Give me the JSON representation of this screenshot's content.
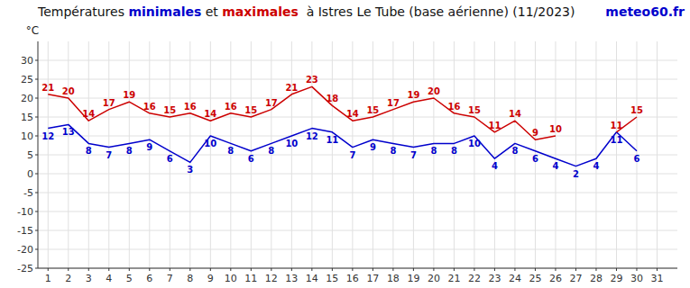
{
  "chart_data": {
    "type": "line",
    "title": "Températures minimales et maximales  à Istres Le Tube (base aérienne) (11/2023)",
    "ylabel": "°C",
    "annotations": [
      {
        "text": "meteo60.fr",
        "color": "#0000cc"
      }
    ],
    "x": [
      1,
      2,
      3,
      4,
      5,
      6,
      7,
      8,
      9,
      10,
      11,
      12,
      13,
      14,
      15,
      16,
      17,
      18,
      19,
      20,
      21,
      22,
      23,
      24,
      25,
      26,
      27,
      28,
      29,
      30,
      31
    ],
    "series": [
      {
        "name": "minimales",
        "color": "#0000cc",
        "values": [
          12,
          13,
          8,
          7,
          8,
          9,
          6,
          3,
          10,
          8,
          6,
          8,
          10,
          12,
          11,
          7,
          9,
          8,
          7,
          8,
          8,
          10,
          4,
          8,
          6,
          4,
          2,
          4,
          11,
          6,
          null
        ]
      },
      {
        "name": "maximales",
        "color": "#cc0000",
        "values": [
          21,
          20,
          14,
          17,
          19,
          16,
          15,
          16,
          14,
          16,
          15,
          17,
          21,
          23,
          18,
          14,
          15,
          17,
          19,
          20,
          16,
          15,
          11,
          14,
          9,
          10,
          null,
          null,
          11,
          15,
          null
        ]
      }
    ],
    "xlim": [
      0.5,
      32
    ],
    "ylim": [
      -25,
      35
    ],
    "xticks": [
      1,
      2,
      3,
      4,
      5,
      6,
      7,
      8,
      9,
      10,
      11,
      12,
      13,
      14,
      15,
      16,
      17,
      18,
      19,
      20,
      21,
      22,
      23,
      24,
      25,
      26,
      27,
      28,
      29,
      30,
      31
    ],
    "yticks": [
      -25,
      -20,
      -15,
      -10,
      -5,
      0,
      5,
      10,
      15,
      20,
      25,
      30
    ],
    "grid": true,
    "data_labels": true
  }
}
